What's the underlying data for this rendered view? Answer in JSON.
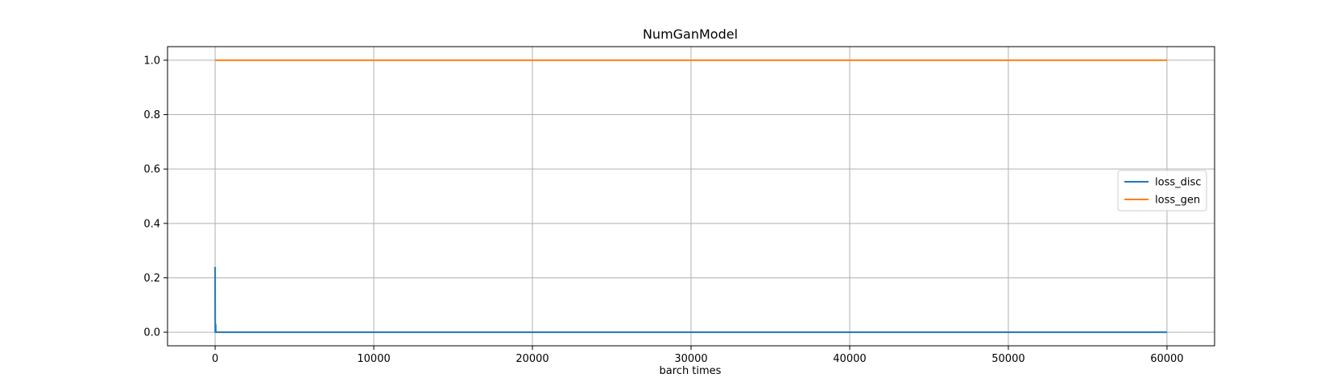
{
  "chart_data": {
    "type": "line",
    "title": "NumGanModel",
    "xlabel": "barch times",
    "ylabel": "",
    "xlim": [
      -3000,
      63000
    ],
    "ylim": [
      -0.05,
      1.05
    ],
    "xticks": [
      0,
      10000,
      20000,
      30000,
      40000,
      50000,
      60000
    ],
    "yticks": [
      0.0,
      0.2,
      0.4,
      0.6,
      0.8,
      1.0
    ],
    "xtick_labels": [
      "0",
      "10000",
      "20000",
      "30000",
      "40000",
      "50000",
      "60000"
    ],
    "ytick_labels": [
      "0.0",
      "0.2",
      "0.4",
      "0.6",
      "0.8",
      "1.0"
    ],
    "grid": true,
    "legend_position": "center-right",
    "series": [
      {
        "name": "loss_disc",
        "color": "#1f77b4",
        "x": [
          0,
          2,
          4,
          8,
          12,
          20,
          30,
          40,
          50,
          60,
          80,
          100,
          200,
          500,
          1000,
          5000,
          10000,
          20000,
          30000,
          40000,
          50000,
          60000
        ],
        "y": [
          0.24,
          0.13,
          0.05,
          0.01,
          0.0,
          0.0,
          0.03,
          0.005,
          0.0,
          0.0,
          0.0,
          0.0,
          0.0,
          0.0,
          0.0,
          0.0,
          0.0,
          0.0,
          0.0,
          0.0,
          0.0,
          0.0
        ]
      },
      {
        "name": "loss_gen",
        "color": "#ff7f0e",
        "x": [
          0,
          10000,
          20000,
          30000,
          40000,
          50000,
          60000
        ],
        "y": [
          1.0,
          1.0,
          1.0,
          1.0,
          1.0,
          1.0,
          1.0
        ]
      }
    ]
  }
}
